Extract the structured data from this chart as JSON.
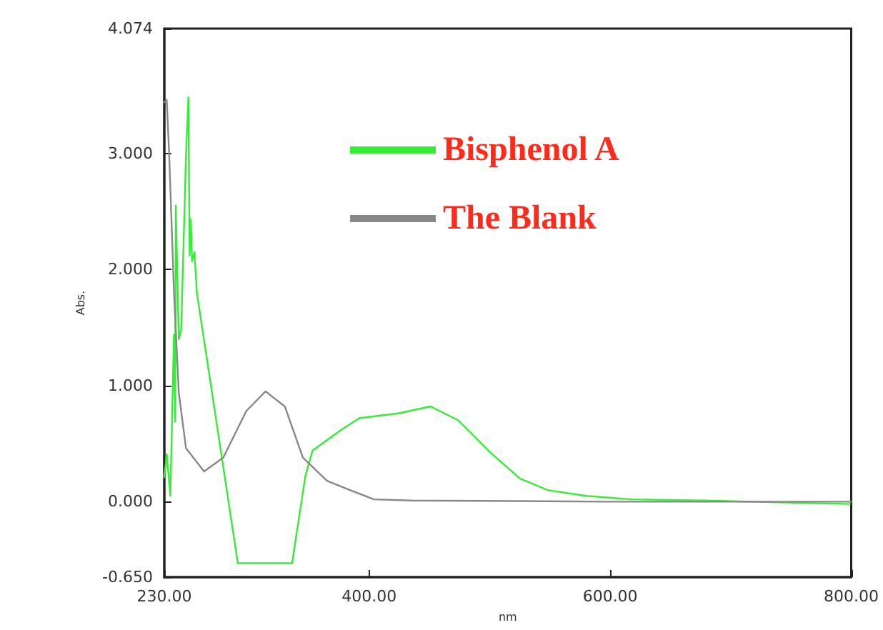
{
  "chart_data": {
    "type": "line",
    "xlabel": "nm",
    "ylabel": "Abs.",
    "xlim": [
      230,
      800
    ],
    "ylim": [
      -0.65,
      4.074
    ],
    "xticks": [
      {
        "value": 230,
        "label": "230.00"
      },
      {
        "value": 400,
        "label": "400.00"
      },
      {
        "value": 600,
        "label": "600.00"
      },
      {
        "value": 800,
        "label": "800.00"
      }
    ],
    "yticks": [
      {
        "value": -0.65,
        "label": "-0.650"
      },
      {
        "value": 0,
        "label": "0.000"
      },
      {
        "value": 1,
        "label": "1.000"
      },
      {
        "value": 2,
        "label": "2.000"
      },
      {
        "value": 3,
        "label": "3.000"
      },
      {
        "value": 4.074,
        "label": "4.074"
      }
    ],
    "series": [
      {
        "name": "Bisphenol A",
        "color": "#33ee33",
        "x": [
          230,
          232,
          235,
          238,
          239,
          239.5,
          242,
          244,
          248,
          250,
          251,
          252,
          253,
          255,
          257,
          291,
          336,
          347,
          353,
          377,
          392,
          424,
          451,
          474,
          501,
          525,
          548,
          580,
          618,
          678,
          799
        ],
        "values": [
          0.21,
          0.41,
          0.05,
          1.44,
          0.69,
          2.55,
          1.4,
          1.48,
          2.99,
          3.48,
          2.12,
          2.43,
          2.07,
          2.15,
          1.8,
          -0.53,
          -0.53,
          0.22,
          0.44,
          0.62,
          0.72,
          0.76,
          0.82,
          0.7,
          0.42,
          0.2,
          0.1,
          0.05,
          0.02,
          0.01,
          -0.02
        ]
      },
      {
        "name": "The Blank",
        "color": "#888888",
        "x": [
          230,
          232,
          234,
          238,
          242,
          248,
          263,
          279,
          298,
          314,
          330,
          345,
          365,
          384,
          404,
          435,
          600,
          800
        ],
        "values": [
          3.44,
          3.46,
          3.0,
          1.81,
          0.94,
          0.46,
          0.26,
          0.38,
          0.78,
          0.95,
          0.82,
          0.38,
          0.18,
          0.1,
          0.02,
          0.01,
          0.0,
          0.0
        ]
      }
    ],
    "legend": "top right",
    "marker": "none",
    "line_style": "solid",
    "grid": false
  }
}
